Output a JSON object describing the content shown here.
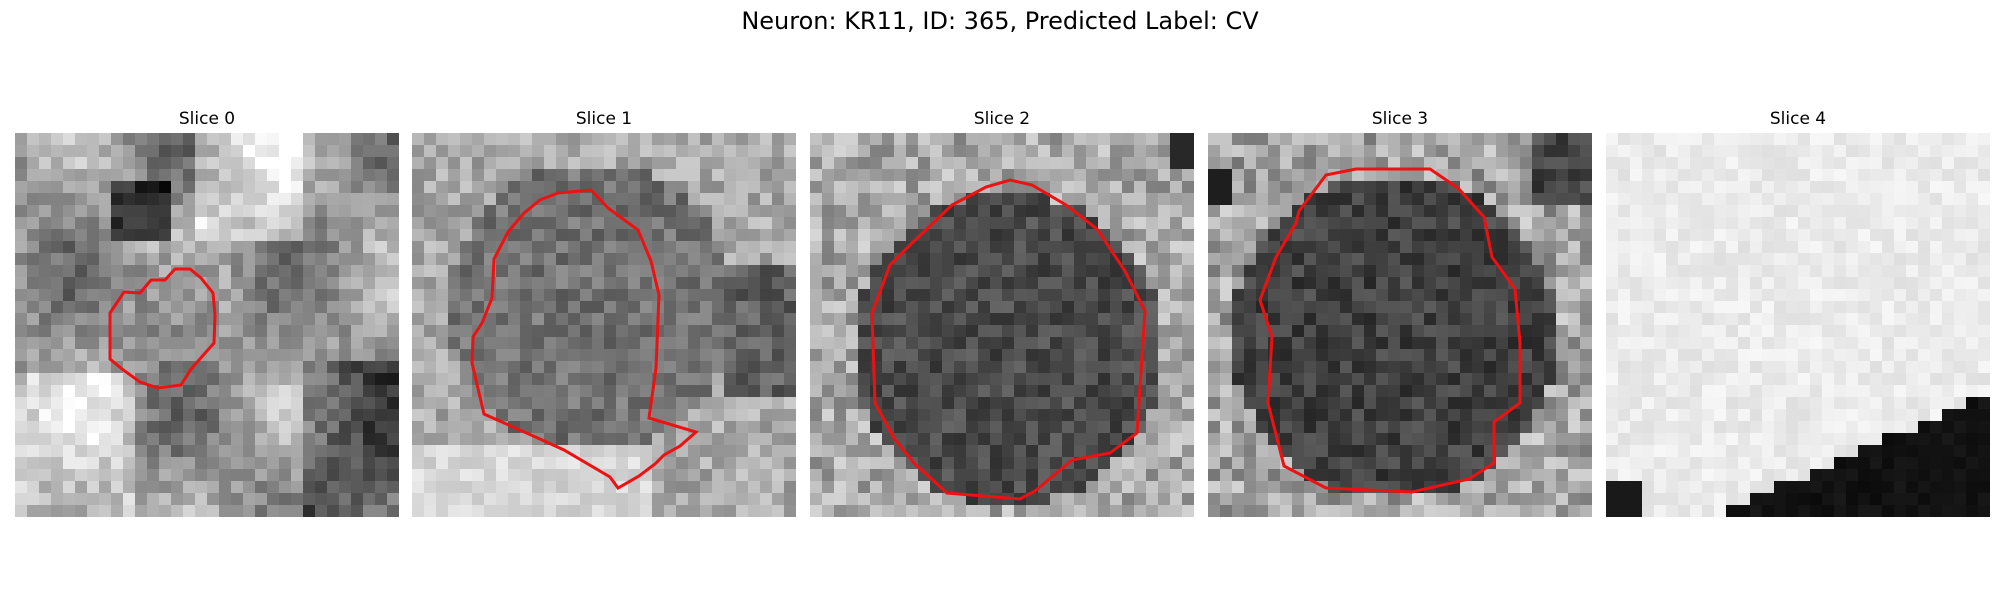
{
  "figure": {
    "title": "Neuron: KR11, ID: 365, Predicted Label: CV",
    "contour_color": "#ee1111"
  },
  "panels": [
    {
      "label": "Slice 0",
      "scene": "small-soma",
      "contour": true
    },
    {
      "label": "Slice 1",
      "scene": "medium-soma",
      "contour": true
    },
    {
      "label": "Slice 2",
      "scene": "dark-soma",
      "contour": true
    },
    {
      "label": "Slice 3",
      "scene": "dark-soma-large",
      "contour": true
    },
    {
      "label": "Slice 4",
      "scene": "bright-with-dark-corner",
      "contour": false
    }
  ]
}
